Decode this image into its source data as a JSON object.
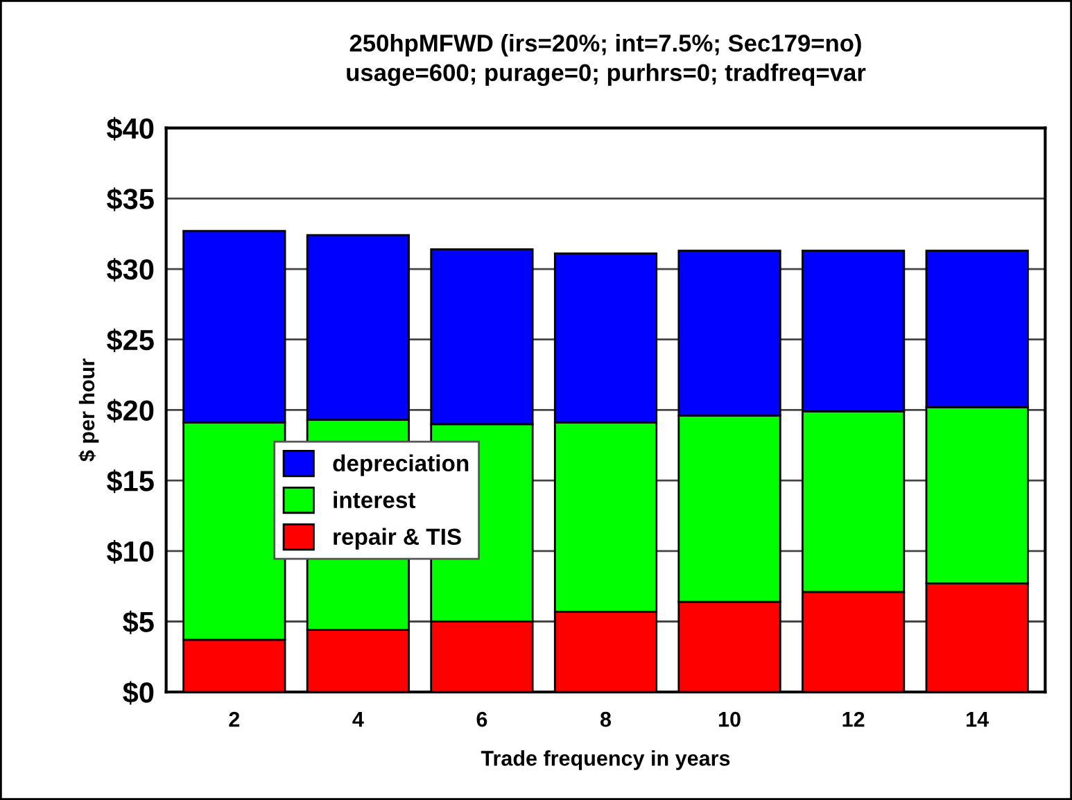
{
  "chart_data": {
    "type": "bar",
    "stacked": true,
    "title": "250hpMFWD (irs=20%; int=7.5%; Sec179=no)\nusage=600; purage=0; purhrs=0; tradfreq=var",
    "xlabel": "Trade frequency in years",
    "ylabel": "$ per hour",
    "categories": [
      "2",
      "4",
      "6",
      "8",
      "10",
      "12",
      "14"
    ],
    "series": [
      {
        "name": "repair & TIS",
        "color": "#ff0000",
        "values": [
          3.7,
          4.4,
          5.0,
          5.7,
          6.4,
          7.1,
          7.7
        ]
      },
      {
        "name": "interest",
        "color": "#00ff00",
        "values": [
          15.4,
          14.9,
          14.0,
          13.4,
          13.2,
          12.8,
          12.5
        ]
      },
      {
        "name": "depreciation",
        "color": "#0000ff",
        "values": [
          13.6,
          13.1,
          12.4,
          12.0,
          11.7,
          11.4,
          11.1
        ]
      }
    ],
    "ylim": [
      0,
      40
    ],
    "yticks": [
      {
        "value": 0,
        "label": "$0"
      },
      {
        "value": 5,
        "label": "$5"
      },
      {
        "value": 10,
        "label": "$10"
      },
      {
        "value": 15,
        "label": "$15"
      },
      {
        "value": 20,
        "label": "$20"
      },
      {
        "value": 25,
        "label": "$25"
      },
      {
        "value": 30,
        "label": "$30"
      },
      {
        "value": 35,
        "label": "$35"
      },
      {
        "value": 40,
        "label": "$40"
      }
    ],
    "grid": "y",
    "legend": "left"
  }
}
